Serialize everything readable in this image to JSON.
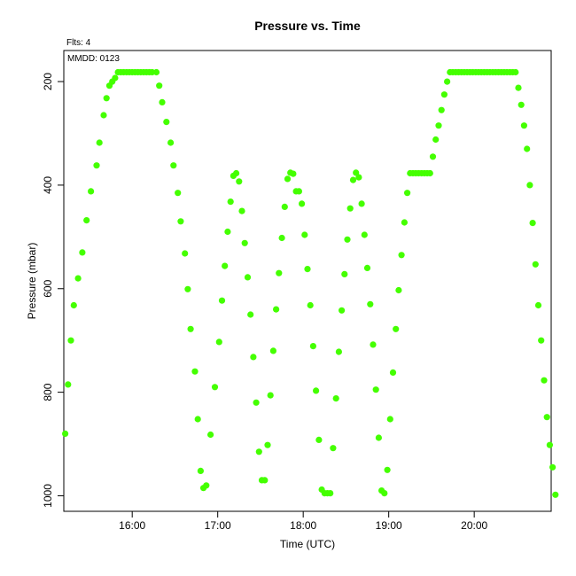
{
  "chart_data": {
    "type": "scatter",
    "title": "Pressure  vs. Time",
    "xlabel": "Time (UTC)",
    "ylabel": "Pressure (mbar)",
    "flights_label": "Flts: 4",
    "date_label": "MMDD: 0123",
    "x_ticks": [
      "16:00",
      "17:00",
      "18:00",
      "19:00",
      "20:00"
    ],
    "y_ticks": [
      200,
      400,
      600,
      800,
      1000
    ],
    "xlim": [
      "15:12",
      "20:54"
    ],
    "ylim": [
      1030,
      140
    ],
    "y_reversed": true,
    "grid": false,
    "point_color": "#44ff00",
    "series": [
      {
        "x": [
          "15:13",
          "15:15",
          "15:17",
          "15:19",
          "15:22",
          "15:25",
          "15:28",
          "15:31",
          "15:35",
          "15:37",
          "15:40",
          "15:42",
          "15:44",
          "15:46",
          "15:48",
          "15:50",
          "15:52",
          "15:54",
          "15:56",
          "15:58",
          "16:00",
          "16:02",
          "16:04",
          "16:06",
          "16:08",
          "16:10",
          "16:12",
          "16:14",
          "16:17",
          "16:19",
          "16:21",
          "16:24",
          "16:27",
          "16:29",
          "16:32",
          "16:34",
          "16:37",
          "16:39",
          "16:41",
          "16:44",
          "16:46",
          "16:48"
        ],
        "y": [
          880,
          785,
          700,
          632,
          580,
          530,
          468,
          412,
          362,
          318,
          265,
          232,
          208,
          200,
          193,
          182,
          182,
          182,
          182,
          182,
          182,
          182,
          182,
          182,
          182,
          182,
          182,
          182,
          182,
          208,
          240,
          278,
          318,
          362,
          415,
          470,
          532,
          601,
          678,
          760,
          852,
          952
        ]
      },
      {
        "x": [
          "16:50",
          "16:52",
          "16:55",
          "16:58",
          "17:01",
          "17:03",
          "17:05",
          "17:07",
          "17:09",
          "17:11",
          "17:13",
          "17:15",
          "17:17",
          "17:19",
          "17:21",
          "17:23",
          "17:25",
          "17:27",
          "17:29",
          "17:31",
          "17:33",
          "17:35",
          "17:37",
          "17:39",
          "17:41",
          "17:43",
          "17:45",
          "17:47",
          "17:49",
          "17:51",
          "17:53",
          "17:55",
          "17:57",
          "17:59",
          "18:01",
          "18:03",
          "18:05",
          "18:07",
          "18:09",
          "18:11"
        ],
        "y": [
          985,
          980,
          882,
          790,
          703,
          623,
          556,
          490,
          432,
          382,
          377,
          393,
          450,
          512,
          578,
          650,
          732,
          820,
          915,
          970,
          970,
          902,
          806,
          720,
          640,
          570,
          502,
          442,
          388,
          376,
          378,
          412,
          412,
          436,
          496,
          562,
          632,
          711,
          797,
          892
        ]
      },
      {
        "x": [
          "18:13",
          "18:15",
          "18:17",
          "18:19",
          "18:21",
          "18:23",
          "18:25",
          "18:27",
          "18:29",
          "18:31",
          "18:33",
          "18:35",
          "18:37",
          "18:39",
          "18:41",
          "18:43",
          "18:45",
          "18:47",
          "18:49",
          "18:51",
          "18:53",
          "18:55",
          "18:57",
          "18:59",
          "19:01",
          "19:03",
          "19:05",
          "19:07",
          "19:09",
          "19:11",
          "19:13",
          "19:15",
          "19:17",
          "19:19"
        ],
        "y": [
          988,
          995,
          995,
          995,
          908,
          812,
          722,
          642,
          572,
          505,
          445,
          390,
          376,
          385,
          436,
          496,
          560,
          630,
          708,
          795,
          888,
          990,
          995,
          950,
          852,
          762,
          678,
          603,
          535,
          472,
          415,
          377,
          377,
          377
        ]
      },
      {
        "x": [
          "19:21",
          "19:23",
          "19:25",
          "19:27",
          "19:29",
          "19:31",
          "19:33",
          "19:35",
          "19:37",
          "19:39",
          "19:41",
          "19:43",
          "19:45",
          "19:47",
          "19:49",
          "19:51",
          "19:53",
          "19:55",
          "19:57",
          "19:59",
          "20:01",
          "20:03",
          "20:05",
          "20:07",
          "20:09",
          "20:11",
          "20:13",
          "20:15",
          "20:17",
          "20:19",
          "20:21",
          "20:23",
          "20:25",
          "20:27",
          "20:29",
          "20:31",
          "20:33",
          "20:35",
          "20:37",
          "20:39",
          "20:41",
          "20:43",
          "20:45",
          "20:47",
          "20:49",
          "20:51"
        ],
        "y": [
          377,
          377,
          377,
          377,
          377,
          345,
          312,
          285,
          255,
          225,
          200,
          182,
          182,
          182,
          182,
          182,
          182,
          182,
          182,
          182,
          182,
          182,
          182,
          182,
          182,
          182,
          182,
          182,
          182,
          182,
          182,
          182,
          182,
          182,
          182,
          212,
          245,
          285,
          330,
          400,
          473,
          553,
          632,
          700,
          777,
          848
        ]
      },
      {
        "x": [
          "20:53",
          "20:55",
          "20:57"
        ],
        "y": [
          902,
          945,
          998
        ]
      }
    ]
  }
}
